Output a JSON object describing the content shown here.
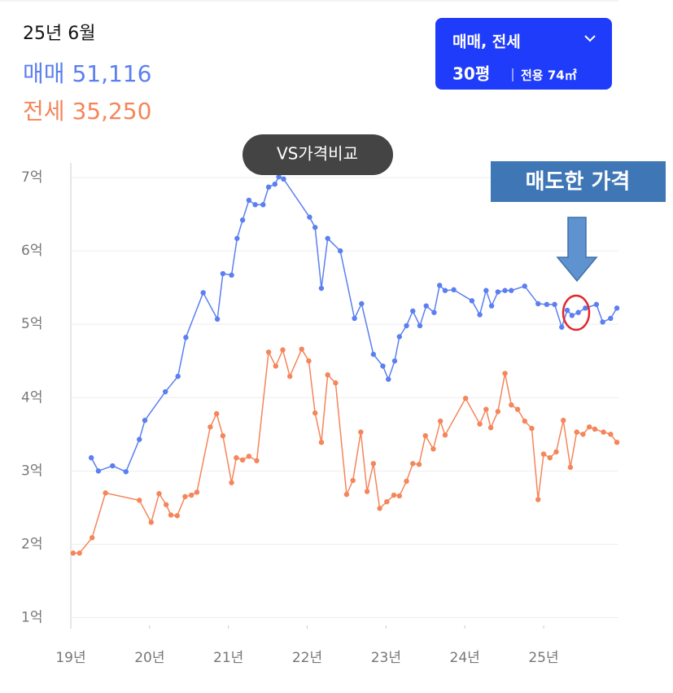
{
  "header": {
    "date": "25년 6월",
    "stats": [
      {
        "name": "매매",
        "value": "51,116"
      },
      {
        "name": "전세",
        "value": "35,250"
      }
    ]
  },
  "filter_button": {
    "deal_types": "매매, 전세",
    "size": "30평",
    "area": "전용 74㎡"
  },
  "chart_data": {
    "type": "line",
    "annotations": {
      "tooltip": "VS가격비교",
      "callout": "매도한 가격"
    },
    "xlim": [
      19,
      25.95
    ],
    "xticks": [
      {
        "value": 19,
        "label": "19년"
      },
      {
        "value": 20,
        "label": "20년"
      },
      {
        "value": 21,
        "label": "21년"
      },
      {
        "value": 22,
        "label": "22년"
      },
      {
        "value": 23,
        "label": "23년"
      },
      {
        "value": 24,
        "label": "24년"
      },
      {
        "value": 25,
        "label": "25년"
      }
    ],
    "ylim": [
      0.85,
      7.2
    ],
    "yticks": [
      {
        "value": 1,
        "label": "1억"
      },
      {
        "value": 2,
        "label": "2억"
      },
      {
        "value": 3,
        "label": "3억"
      },
      {
        "value": 4,
        "label": "4억"
      },
      {
        "value": 5,
        "label": "5억"
      },
      {
        "value": 6,
        "label": "6억"
      },
      {
        "value": 7,
        "label": "7억"
      }
    ],
    "grid": true,
    "series": [
      {
        "color": "#5b7ff0",
        "x": [
          19.26,
          19.35,
          19.53,
          19.7,
          19.87,
          19.94,
          20.2,
          20.36,
          20.46,
          20.68,
          20.86,
          20.93,
          21.04,
          21.11,
          21.18,
          21.26,
          21.34,
          21.44,
          21.51,
          21.59,
          21.64,
          21.7,
          22.03,
          22.1,
          22.18,
          22.26,
          22.42,
          22.6,
          22.69,
          22.84,
          22.96,
          23.03,
          23.11,
          23.17,
          23.26,
          23.34,
          23.43,
          23.51,
          23.61,
          23.68,
          23.75,
          23.86,
          24.09,
          24.19,
          24.27,
          24.34,
          24.42,
          24.51,
          24.59,
          24.76,
          24.93,
          25.04,
          25.14,
          25.23,
          25.3,
          25.36,
          25.44,
          25.53,
          25.67,
          25.75,
          25.85,
          25.93
        ],
        "values": [
          3.18,
          3.0,
          3.07,
          2.99,
          3.43,
          3.69,
          4.08,
          4.29,
          4.82,
          5.43,
          5.07,
          5.69,
          5.67,
          6.17,
          6.42,
          6.69,
          6.63,
          6.63,
          6.87,
          6.91,
          7.01,
          6.98,
          6.46,
          6.32,
          5.49,
          6.17,
          6.0,
          5.08,
          5.28,
          4.59,
          4.43,
          4.25,
          4.5,
          4.83,
          4.98,
          5.18,
          4.98,
          5.25,
          5.16,
          5.53,
          5.46,
          5.47,
          5.32,
          5.13,
          5.46,
          5.25,
          5.44,
          5.46,
          5.46,
          5.52,
          5.28,
          5.27,
          5.27,
          4.96,
          5.19,
          5.12,
          5.16,
          5.22,
          5.27,
          5.03,
          5.08,
          5.22
        ]
      },
      {
        "color": "#f5855a",
        "x": [
          19.03,
          19.11,
          19.27,
          19.44,
          19.87,
          20.02,
          20.12,
          20.21,
          20.27,
          20.35,
          20.45,
          20.53,
          20.6,
          20.77,
          20.85,
          20.93,
          21.04,
          21.1,
          21.18,
          21.26,
          21.36,
          21.51,
          21.6,
          21.69,
          21.78,
          21.93,
          22.02,
          22.1,
          22.18,
          22.26,
          22.36,
          22.5,
          22.58,
          22.68,
          22.76,
          22.84,
          22.92,
          23.01,
          23.1,
          23.17,
          23.26,
          23.34,
          23.42,
          23.5,
          23.6,
          23.69,
          23.75,
          24.01,
          24.19,
          24.27,
          24.33,
          24.42,
          24.51,
          24.59,
          24.67,
          24.76,
          24.85,
          24.93,
          25.0,
          25.08,
          25.16,
          25.25,
          25.34,
          25.42,
          25.5,
          25.58,
          25.65,
          25.76,
          25.85,
          25.93
        ],
        "values": [
          1.88,
          1.88,
          2.09,
          2.7,
          2.6,
          2.3,
          2.69,
          2.54,
          2.4,
          2.39,
          2.65,
          2.67,
          2.71,
          3.6,
          3.78,
          3.48,
          2.84,
          3.18,
          3.15,
          3.2,
          3.14,
          4.62,
          4.43,
          4.65,
          4.29,
          4.66,
          4.5,
          3.79,
          3.39,
          4.31,
          4.2,
          2.68,
          2.87,
          3.53,
          2.72,
          3.1,
          2.49,
          2.58,
          2.67,
          2.66,
          2.86,
          3.1,
          3.09,
          3.48,
          3.3,
          3.68,
          3.49,
          3.99,
          3.64,
          3.84,
          3.59,
          3.81,
          4.33,
          3.9,
          3.84,
          3.68,
          3.58,
          2.61,
          3.23,
          3.18,
          3.26,
          3.69,
          3.05,
          3.53,
          3.5,
          3.6,
          3.57,
          3.53,
          3.5,
          3.39
        ]
      }
    ]
  }
}
